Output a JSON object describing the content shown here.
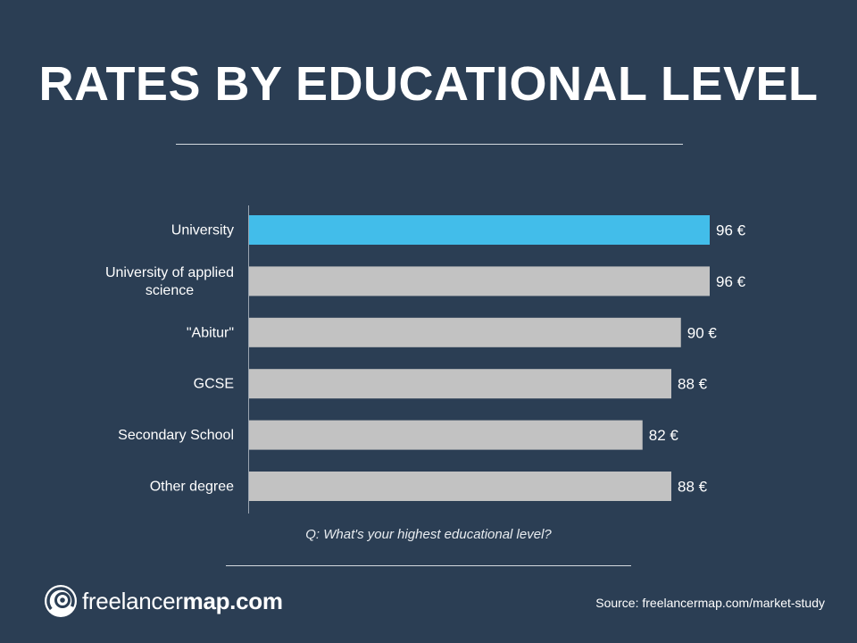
{
  "title": "RATES BY EDUCATIONAL LEVEL",
  "question": "Q: What's your highest educational level?",
  "source": "Source: freelancermap.com/market-study",
  "logo": {
    "icon": "freelancermap-logo-icon",
    "text_light": "freelancer",
    "text_bold": "map.com"
  },
  "colors": {
    "background": "#2b3e54",
    "highlight_bar": "#42bdea",
    "default_bar": "#c2c2c2",
    "text": "#ffffff"
  },
  "chart_data": {
    "type": "bar",
    "orientation": "horizontal",
    "categories": [
      [
        "University"
      ],
      [
        "University of applied",
        "science"
      ],
      [
        "\"Abitur\""
      ],
      [
        "GCSE"
      ],
      [
        "Secondary School"
      ],
      [
        "Other degree"
      ]
    ],
    "values": [
      96,
      96,
      90,
      88,
      82,
      88
    ],
    "value_labels": [
      "96 €",
      "96 €",
      "90 €",
      "88 €",
      "82 €",
      "88 €"
    ],
    "highlight_index": 0,
    "unit": "€",
    "grid": false
  }
}
